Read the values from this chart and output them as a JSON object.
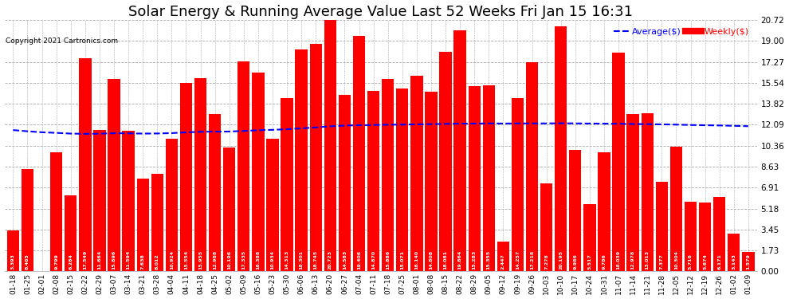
{
  "title": "Solar Energy & Running Average Value Last 52 Weeks Fri Jan 15 16:31",
  "copyright": "Copyright 2021 Cartronics.com",
  "legend_avg": "Average($)",
  "legend_weekly": "Weekly($)",
  "categories": [
    "01-18",
    "01-25",
    "02-01",
    "02-08",
    "02-15",
    "02-22",
    "02-29",
    "03-07",
    "03-14",
    "03-21",
    "03-28",
    "04-04",
    "04-11",
    "04-18",
    "04-25",
    "05-02",
    "05-09",
    "05-16",
    "05-23",
    "05-30",
    "06-06",
    "06-13",
    "06-20",
    "06-27",
    "07-04",
    "07-11",
    "07-18",
    "07-25",
    "08-01",
    "08-08",
    "08-15",
    "08-22",
    "08-29",
    "09-05",
    "09-12",
    "09-19",
    "09-26",
    "10-03",
    "10-10",
    "10-17",
    "10-24",
    "10-31",
    "11-07",
    "11-14",
    "11-21",
    "11-28",
    "12-05",
    "12-12",
    "12-19",
    "12-26",
    "01-02",
    "01-09"
  ],
  "weekly_values": [
    3.393,
    8.465,
    0.008,
    9.799,
    6.284,
    17.549,
    11.664,
    15.896,
    11.594,
    7.638,
    8.012,
    10.924,
    15.554,
    15.955,
    12.988,
    10.196,
    17.335,
    16.388,
    10.934,
    14.313,
    18.301,
    18.745,
    20.723,
    14.583,
    19.406,
    14.87,
    15.886,
    15.071,
    16.14,
    14.808,
    18.081,
    19.864,
    15.283,
    15.355,
    2.447,
    14.257,
    17.218,
    7.278,
    20.195,
    9.986,
    5.517,
    9.786,
    18.039,
    12.978,
    13.013,
    7.377,
    10.304,
    5.716,
    5.674,
    6.171,
    3.143,
    1.579
  ],
  "avg_values": [
    11.65,
    11.55,
    11.47,
    11.42,
    11.36,
    11.34,
    11.35,
    11.39,
    11.38,
    11.36,
    11.37,
    11.4,
    11.46,
    11.51,
    11.52,
    11.53,
    11.58,
    11.64,
    11.67,
    11.72,
    11.79,
    11.87,
    11.96,
    12.02,
    12.05,
    12.07,
    12.09,
    12.1,
    12.12,
    12.14,
    12.16,
    12.18,
    12.19,
    12.2,
    12.19,
    12.2,
    12.2,
    12.2,
    12.21,
    12.2,
    12.19,
    12.18,
    12.17,
    12.15,
    12.14,
    12.12,
    12.1,
    12.07,
    12.05,
    12.03,
    12.0,
    11.97
  ],
  "bar_color": "#ff0000",
  "avg_line_color": "#0000ff",
  "background_color": "#ffffff",
  "title_fontsize": 13,
  "yticks": [
    0.0,
    1.73,
    3.45,
    5.18,
    6.91,
    8.63,
    10.36,
    12.09,
    13.82,
    15.54,
    17.27,
    19.0,
    20.72
  ],
  "ymax": 20.72,
  "ymin": 0.0,
  "grid_color": "#aaaaaa",
  "grid_linestyle": "--"
}
